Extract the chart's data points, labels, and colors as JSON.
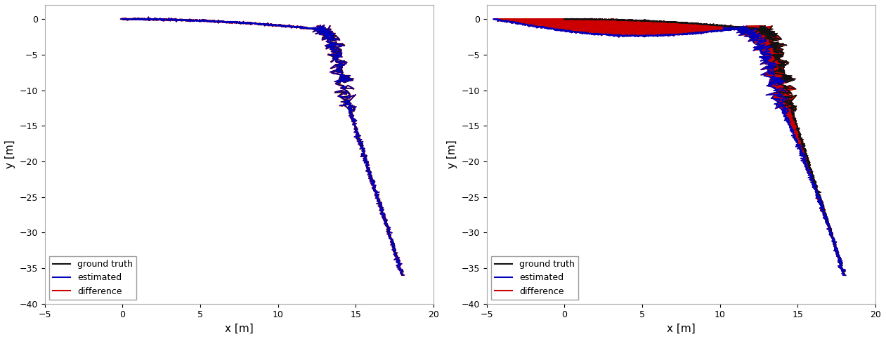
{
  "xlim": [
    -5,
    20
  ],
  "ylim": [
    -40,
    2
  ],
  "xlabel": "x [m]",
  "ylabel": "y [m]",
  "xticks": [
    -5,
    0,
    5,
    10,
    15,
    20
  ],
  "yticks": [
    0,
    -5,
    -10,
    -15,
    -20,
    -25,
    -30,
    -35,
    -40
  ],
  "legend_labels": [
    "ground truth",
    "estimated",
    "difference"
  ],
  "legend_colors": [
    "#111111",
    "#0000bb",
    "#cc0000"
  ],
  "background_color": "#ffffff",
  "fig_background": "#ffffff",
  "line_color_gt": "#111111",
  "line_color_est": "#0000bb",
  "line_color_diff": "#cc0000",
  "seed": 42
}
